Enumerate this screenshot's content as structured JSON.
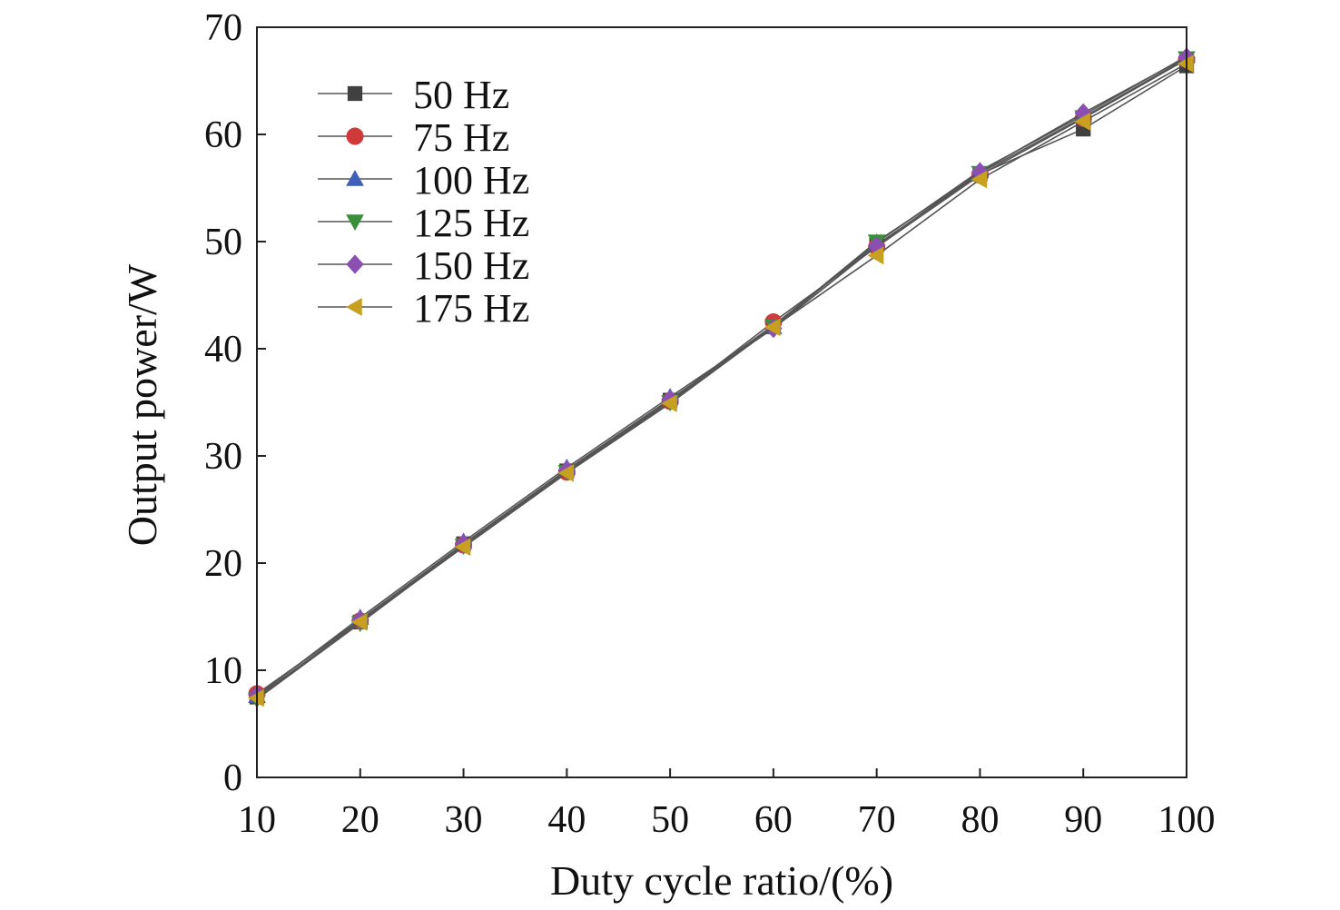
{
  "chart_data": {
    "type": "line",
    "xlabel": "Duty cycle ratio/(%)",
    "ylabel": "Output power/W",
    "xlim": [
      10,
      100
    ],
    "ylim": [
      0,
      70
    ],
    "x_ticks": [
      10,
      20,
      30,
      40,
      50,
      60,
      70,
      80,
      90,
      100
    ],
    "y_ticks": [
      0,
      10,
      20,
      30,
      40,
      50,
      60,
      70
    ],
    "grid": false,
    "legend_position": "top-left",
    "x": [
      10,
      20,
      30,
      40,
      50,
      60,
      70,
      80,
      90,
      100
    ],
    "series": [
      {
        "name": "50 Hz",
        "marker": "square",
        "color": "#404040",
        "values": [
          7.5,
          14.5,
          21.8,
          28.6,
          35.2,
          42.2,
          49.7,
          56.3,
          60.5,
          66.4
        ]
      },
      {
        "name": "75 Hz",
        "marker": "circle",
        "color": "#d03a3a",
        "values": [
          7.8,
          14.6,
          21.7,
          28.5,
          35.1,
          42.5,
          49.5,
          56.2,
          61.5,
          67.0
        ]
      },
      {
        "name": "100 Hz",
        "marker": "triangle-up",
        "color": "#3f5fb8",
        "values": [
          7.6,
          14.9,
          22.0,
          28.9,
          35.5,
          42.0,
          49.9,
          56.6,
          61.8,
          67.3
        ]
      },
      {
        "name": "125 Hz",
        "marker": "triangle-down",
        "color": "#3a8f3a",
        "values": [
          7.3,
          14.4,
          21.6,
          28.5,
          35.0,
          42.1,
          50.0,
          56.4,
          61.6,
          67.1
        ]
      },
      {
        "name": "150 Hz",
        "marker": "diamond",
        "color": "#8a4fb0",
        "values": [
          7.7,
          14.7,
          21.8,
          28.7,
          35.3,
          41.9,
          49.6,
          56.5,
          62.0,
          67.2
        ]
      },
      {
        "name": "175 Hz",
        "marker": "triangle-left",
        "color": "#c8a020",
        "values": [
          7.4,
          14.5,
          21.5,
          28.4,
          34.9,
          42.0,
          48.7,
          55.8,
          61.2,
          66.6
        ]
      }
    ]
  }
}
